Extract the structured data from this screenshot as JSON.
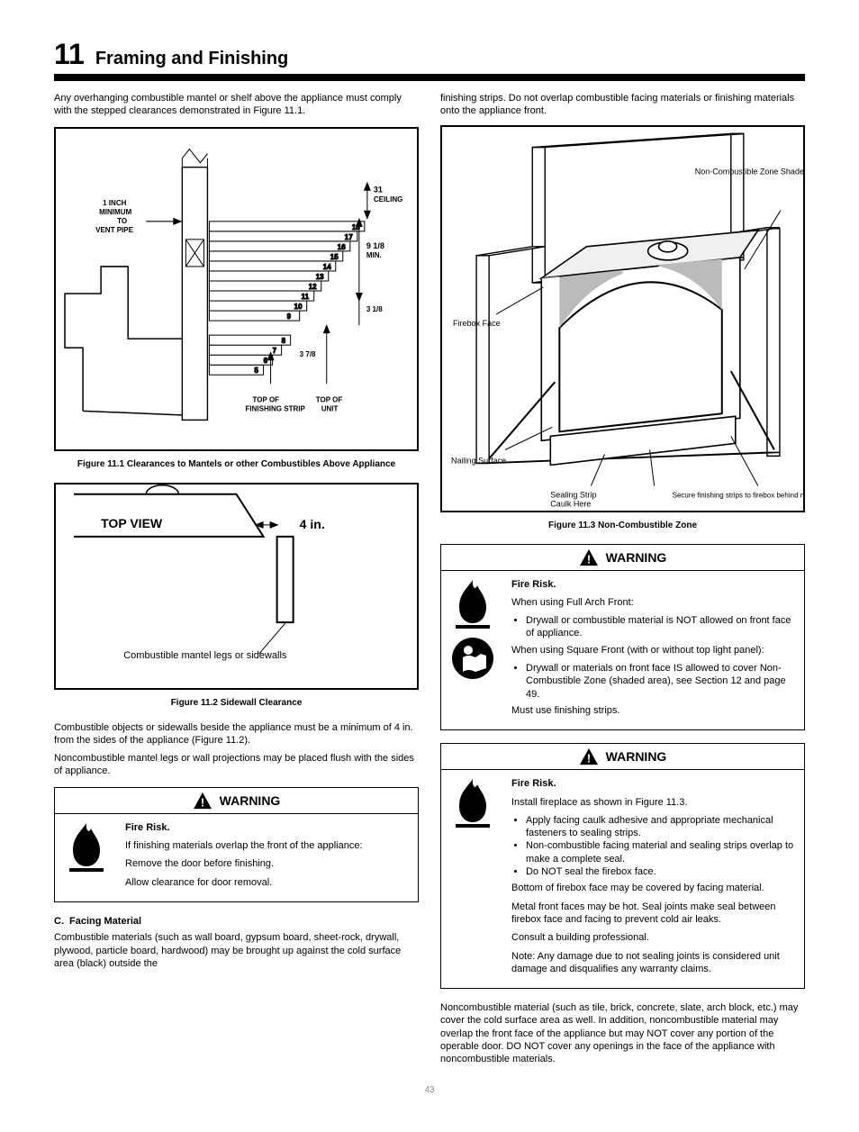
{
  "header": {
    "section_number": "11",
    "section_title": "Framing and Finishing"
  },
  "left": {
    "mantel_intro": "Any overhanging combustible mantel or shelf above the appliance must comply with the stepped clearances demonstrated in Figure 11.1.",
    "fig_11_1": {
      "caption": "Figure 11.1 Clearances to Mantels or other Combustibles Above Appliance",
      "left_label_lines": [
        "1 INCH",
        "MINIMUM",
        "TO",
        "VENT PIPE"
      ],
      "right_labels": {
        "ceiling": [
          "31",
          "CEILING"
        ],
        "min_918": [
          "9 1/8",
          "MIN."
        ],
        "three_18": "3 1/8"
      },
      "bottom_labels": {
        "left": [
          "TOP OF",
          "FINISHING STRIP"
        ],
        "right": [
          "TOP OF",
          "UNIT"
        ],
        "three78": "3 7/8"
      },
      "step_numbers": [
        "5",
        "6",
        "7",
        "8",
        "9",
        "10",
        "11",
        "12",
        "13",
        "14",
        "15",
        "16",
        "17",
        "18"
      ]
    },
    "fig_11_2": {
      "caption": "Figure 11.2 Sidewall Clearance",
      "top_view": "TOP VIEW",
      "four_in": "4 in.",
      "text": "Combustible mantel legs or sidewalls"
    },
    "sidewall_text_1": "Combustible objects or sidewalls beside the appliance must be a minimum of 4 in. from the sides of the appliance (Figure 11.2).",
    "sidewall_text_2": "Noncombustible mantel legs or wall projections may be placed flush with the sides of appliance.",
    "warn1": {
      "title": "WARNING",
      "subtitle": "Fire Risk.",
      "line1": "If finishing materials overlap the front of the appliance:",
      "line2": "Remove the door before finishing.",
      "line3": "Allow clearance for door removal."
    },
    "section_c": {
      "label": "C.",
      "title": "Facing Material"
    },
    "facing_text": "Combustible materials (such as wall board, gypsum board, sheet-rock, drywall, plywood, particle board, hardwood) may be brought up against the cold surface area (black) outside the"
  },
  "right": {
    "top_text": "finishing strips. Do not overlap combustible facing materials or finishing materials onto the appliance front.",
    "fig_11_3": {
      "caption": "Figure 11.3 Non-Combustible Zone",
      "callouts": {
        "non_comb_shaded": "Non-Combustible Zone Shaded Area",
        "firebox_face": "Firebox Face",
        "nailing_surface": "Nailing Surface",
        "sealing_strip_caulk": [
          "Sealing Strip",
          "Caulk Here"
        ],
        "secure_strips": "Secure finishing strips to firebox behind nailing surface"
      }
    },
    "warn2": {
      "title": "WARNING",
      "subtitle": "Fire Risk.",
      "line1": "When using Full Arch Front:",
      "bullets": [
        "Drywall or combustible material is NOT allowed on front face of appliance."
      ],
      "line2": "When using Square Front (with or without top light panel):",
      "bullet2": "Drywall or materials on front face IS allowed to cover Non-Combustible Zone (shaded area), see Section 12 and page 49.",
      "line3": "Must use finishing strips."
    },
    "warn3": {
      "title": "WARNING",
      "subtitle": "Fire Risk.",
      "intro": "Install fireplace as shown in Figure 11.3.",
      "bullets": [
        "Apply facing caulk adhesive and appropriate mechanical fasteners to sealing strips.",
        "Non-combustible facing material and sealing strips overlap to make a complete seal.",
        "Do NOT seal the firebox face."
      ],
      "line2": "Bottom of firebox face may be covered by facing material.",
      "line3": "Metal front faces may be hot. Seal joints make seal between firebox face and facing to prevent cold air leaks.",
      "line4": "Consult a building professional.",
      "note": "Note: Any damage due to not sealing joints is considered unit damage and disqualifies any warranty claims."
    },
    "footer_text": "Noncombustible material (such as tile, brick, concrete, slate, arch block, etc.) may cover the cold surface area as well. In addition, noncombustible material may overlap the front face of the appliance but may NOT cover any portion of the operable door. DO NOT cover any openings in the face of the appliance with noncombustible materials."
  },
  "page_number": "43"
}
